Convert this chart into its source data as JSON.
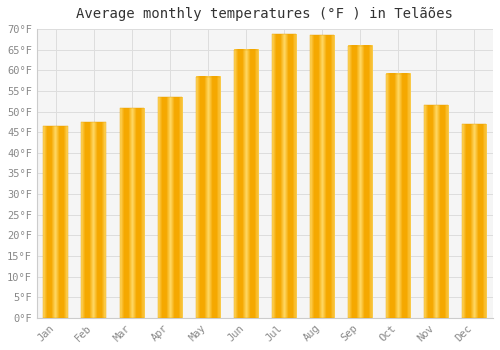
{
  "title": "Average monthly temperatures (°F ) in Telãões",
  "months": [
    "Jan",
    "Feb",
    "Mar",
    "Apr",
    "May",
    "Jun",
    "Jul",
    "Aug",
    "Sep",
    "Oct",
    "Nov",
    "Dec"
  ],
  "values": [
    46.5,
    47.5,
    50.8,
    53.5,
    58.5,
    65.0,
    68.8,
    68.5,
    66.0,
    59.2,
    51.5,
    47.0
  ],
  "bar_color_center": "#F5A800",
  "bar_color_edge": "#FFCC44",
  "ylim": [
    0,
    70
  ],
  "yticks": [
    0,
    5,
    10,
    15,
    20,
    25,
    30,
    35,
    40,
    45,
    50,
    55,
    60,
    65,
    70
  ],
  "background_color": "#ffffff",
  "plot_bg_color": "#f5f5f5",
  "grid_color": "#dddddd",
  "title_fontsize": 10,
  "tick_fontsize": 7.5,
  "tick_color": "#888888",
  "bar_width": 0.65
}
